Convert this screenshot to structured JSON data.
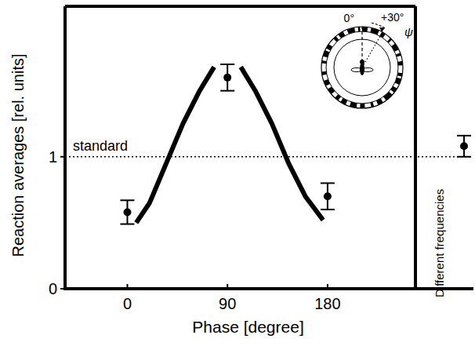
{
  "chart_data": {
    "type": "scatter",
    "x_label": "Phase [degree]",
    "y_label": "Reaction averages [rel. units]",
    "x": [
      0,
      90,
      180
    ],
    "values": [
      0.58,
      1.6,
      0.7
    ],
    "errors": [
      0.09,
      0.1,
      0.1
    ],
    "curve": {
      "x": [
        8,
        20,
        35,
        50,
        65,
        78,
        90,
        102,
        115,
        130,
        145,
        160,
        176
      ],
      "values": [
        0.5,
        0.65,
        0.95,
        1.25,
        1.5,
        1.68,
        null,
        1.68,
        1.5,
        1.25,
        0.95,
        0.7,
        0.52
      ]
    },
    "xlim": [
      -56,
      259
    ],
    "ylim": [
      0,
      2.14
    ],
    "xticks": [
      0,
      90,
      180
    ],
    "yticks": [
      0,
      1
    ],
    "reference": {
      "label": "standard",
      "value": 1
    },
    "side_panel": {
      "label": "Different frequencies",
      "value": 1.08,
      "error": 0.08
    },
    "annotations": [
      "0°",
      "+30°",
      "ψ"
    ],
    "color": "#000000"
  }
}
